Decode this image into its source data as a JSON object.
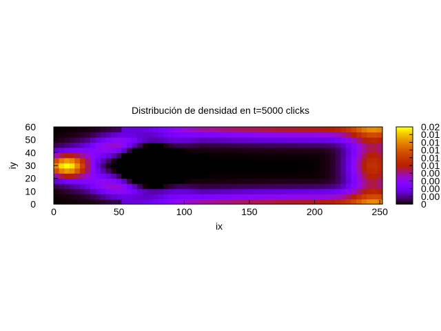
{
  "chart_data": {
    "type": "heatmap",
    "title": "Distribución de densidad en t=5000 clicks",
    "xlabel": "ix",
    "ylabel": "iy",
    "xlim": [
      0,
      252
    ],
    "ylim": [
      0,
      60
    ],
    "x_ticks": [
      "0",
      "50",
      "100",
      "150",
      "200",
      "250"
    ],
    "y_ticks": [
      "0",
      "10",
      "20",
      "30",
      "40",
      "50",
      "60"
    ],
    "grid": false,
    "colorbar": {
      "palette": "gnuplot",
      "range": [
        0,
        0.02
      ],
      "tick_labels": [
        "0",
        "0.00",
        "0.00",
        "0.00",
        "0.00",
        "0.01",
        "0.01",
        "0.01",
        "0.01",
        "0.01",
        "0.02"
      ]
    },
    "density_peaks": [
      {
        "ix": 10,
        "iy": 30,
        "value": 0.02
      },
      {
        "ix": 245,
        "iy": 30,
        "value": 0.012
      }
    ]
  }
}
